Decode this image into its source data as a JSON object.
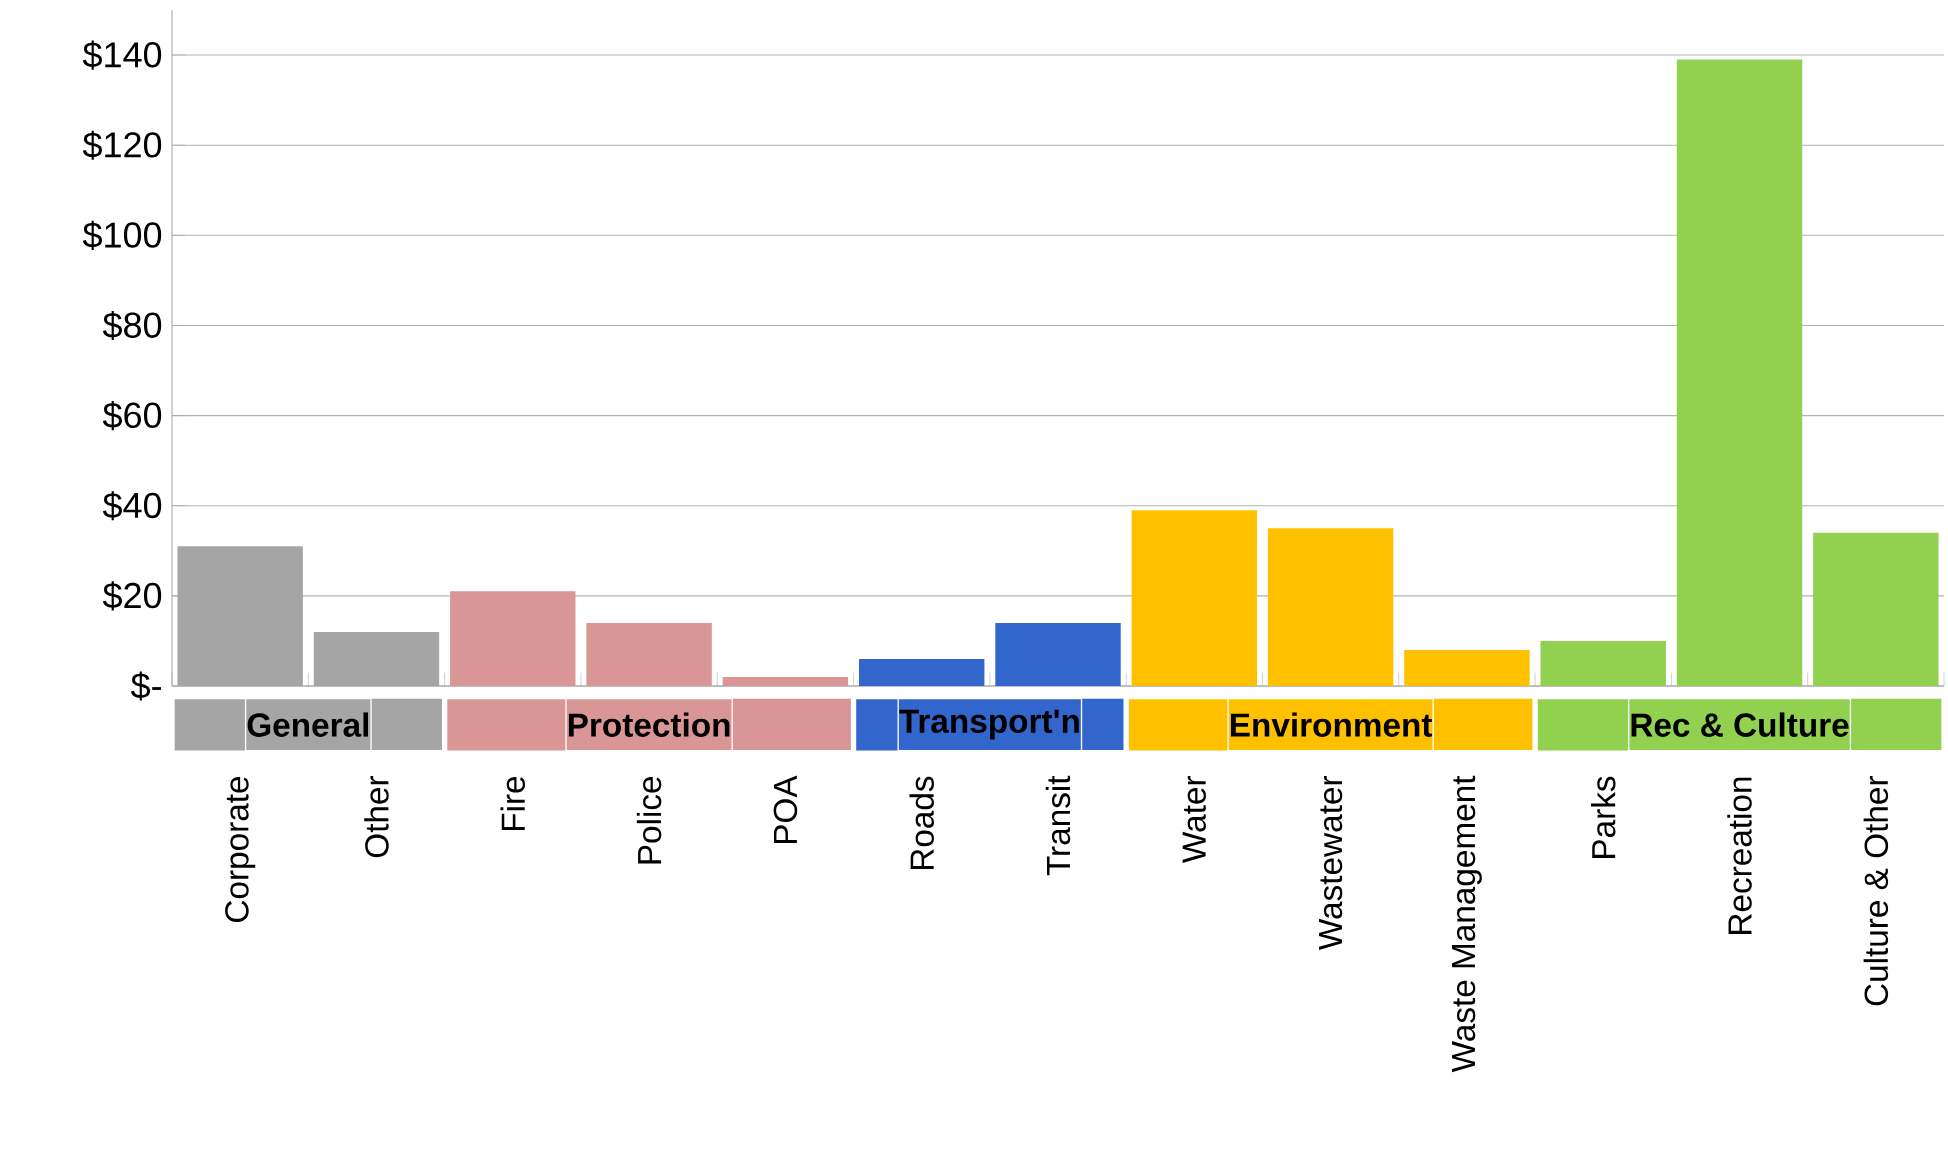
{
  "chart_data": {
    "type": "bar",
    "categories": [
      "Corporate",
      "Other",
      "Fire",
      "Police",
      "POA",
      "Roads",
      "Transit",
      "Water",
      "Wastewater",
      "Waste Management",
      "Parks",
      "Recreation",
      "Culture & Other"
    ],
    "series": [
      {
        "name": "General",
        "color": "#a5a5a5",
        "values": [
          31,
          12,
          null,
          null,
          null,
          null,
          null,
          null,
          null,
          null,
          null,
          null,
          null
        ]
      },
      {
        "name": "Protection",
        "color": "#da9694",
        "values": [
          null,
          null,
          21,
          14,
          2,
          null,
          null,
          null,
          null,
          null,
          null,
          null,
          null
        ]
      },
      {
        "name": "Transport'n",
        "color": "#3366cc",
        "values": [
          null,
          null,
          null,
          null,
          null,
          6,
          14,
          null,
          null,
          null,
          null,
          null,
          null
        ]
      },
      {
        "name": "Environment",
        "color": "#ffc000",
        "values": [
          null,
          null,
          null,
          null,
          null,
          null,
          null,
          39,
          35,
          8,
          null,
          null,
          null
        ]
      },
      {
        "name": "Rec & Culture",
        "color": "#92d050",
        "values": [
          null,
          null,
          null,
          null,
          null,
          null,
          null,
          null,
          null,
          null,
          10,
          139,
          34
        ]
      }
    ],
    "ylim": [
      0,
      150
    ],
    "yticks": [
      {
        "value": 0,
        "label": "$-"
      },
      {
        "value": 20,
        "label": "$20"
      },
      {
        "value": 40,
        "label": "$40"
      },
      {
        "value": 60,
        "label": "$60"
      },
      {
        "value": 80,
        "label": "$80"
      },
      {
        "value": 100,
        "label": "$100"
      },
      {
        "value": 120,
        "label": "$120"
      },
      {
        "value": 140,
        "label": "$140"
      }
    ],
    "grid": "y",
    "legend": "bottom"
  }
}
